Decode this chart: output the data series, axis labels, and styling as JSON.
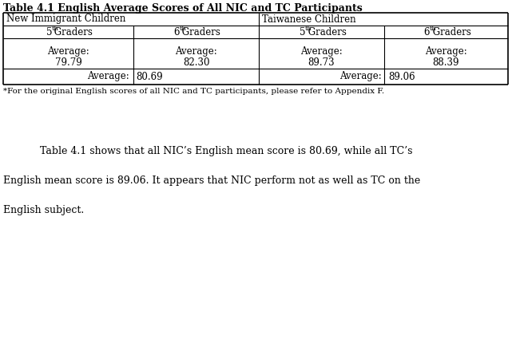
{
  "title": "Table 4.1 English Average Scores of All NIC and TC Participants",
  "group1_label": "New Immigrant Children",
  "group2_label": "Taiwanese Children",
  "grade_headers": [
    "5",
    "6",
    "5",
    "6"
  ],
  "col1_avg_label": "Average:",
  "col1_avg_val": "79.79",
  "col2_avg_label": "Average:",
  "col2_avg_val": "82.30",
  "col3_avg_label": "Average:",
  "col3_avg_val": "89.73",
  "col4_avg_label": "Average:",
  "col4_avg_val": "88.39",
  "nic_total_label": "Average:",
  "nic_total_val": "80.69",
  "tc_total_label": "Average:",
  "tc_total_val": "89.06",
  "footnote": "*For the original English scores of all NIC and TC participants, please refer to Appendix F.",
  "body_text_line1": "Table 4.1 shows that all NIC’s English mean score is 80.69, while all TC’s",
  "body_text_line2": "English mean score is 89.06. It appears that NIC perform not as well as TC on the",
  "body_text_line3": "English subject.",
  "bg_color": "#ffffff",
  "text_color": "#000000",
  "font_size_title": 9,
  "font_size_table": 8.5,
  "font_size_footnote": 7.5,
  "font_size_body": 9,
  "fig_width": 6.41,
  "fig_height": 4.25,
  "dpi": 100
}
